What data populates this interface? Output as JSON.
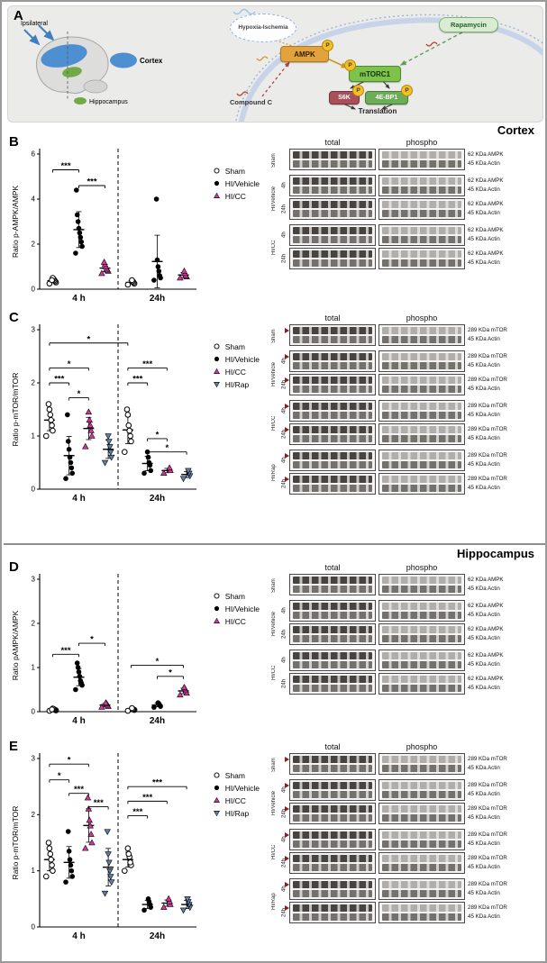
{
  "figure": {
    "cortex_header": "Cortex",
    "hippocampus_header": "Hippocampus"
  },
  "panelA": {
    "label": "A",
    "ipsilateral": "Ipsilateral",
    "cortex": "Cortex",
    "hippocampus": "Hippocampus",
    "hypoxia": "Hypoxia-Ischemia",
    "ampk": "AMPK",
    "mtorc1": "mTORC1",
    "rapamycin": "Rapamycin",
    "compound_c": "Compound C",
    "s6k": "S6K",
    "four_ebp1": "4E-BP1",
    "translation": "Translation",
    "phospho": "P",
    "colors": {
      "ampk_box": "#e2a23c",
      "mtorc1_box": "#7dc24b",
      "rapamycin_box": "#d7ecd2",
      "s6k_box": "#a8505a",
      "ebp1_box": "#6cae57",
      "p_badge": "#f2c029",
      "membrane": "#c7d3e8",
      "hi_cc": "#d5379e",
      "hi_rap": "#5d7fae"
    }
  },
  "panelB": {
    "label": "B",
    "blot": {
      "headers": [
        "total",
        "phospho"
      ],
      "band_labels": [
        "62 KDa AMPK",
        "45 KDa Actin"
      ],
      "arrows": false,
      "groups": [
        {
          "name": "Sham",
          "rows": [
            ""
          ]
        },
        {
          "name": "HI/Vehicle",
          "rows": [
            "4h",
            "24h"
          ]
        },
        {
          "name": "HI/CC",
          "rows": [
            "4h",
            "24h"
          ]
        }
      ]
    }
  },
  "panelC": {
    "label": "C",
    "blot": {
      "headers": [
        "total",
        "phospho"
      ],
      "band_labels": [
        "289 KDa mTOR",
        "45 KDa Actin"
      ],
      "arrows": true,
      "groups": [
        {
          "name": "Sham",
          "rows": [
            ""
          ]
        },
        {
          "name": "HI/Vehicle",
          "rows": [
            "4h",
            "24h"
          ]
        },
        {
          "name": "HI/CC",
          "rows": [
            "4h",
            "24h"
          ]
        },
        {
          "name": "HI/Rap",
          "rows": [
            "4h",
            "24h"
          ]
        }
      ]
    }
  },
  "panelD": {
    "label": "D",
    "blot": {
      "headers": [
        "total",
        "phospho"
      ],
      "band_labels": [
        "62 KDa AMPK",
        "45 KDa Actin"
      ],
      "arrows": false,
      "groups": [
        {
          "name": "Sham",
          "rows": [
            ""
          ]
        },
        {
          "name": "HI/Vehicle",
          "rows": [
            "4h",
            "24h"
          ]
        },
        {
          "name": "HI/CC",
          "rows": [
            "4h",
            "24h"
          ]
        }
      ]
    }
  },
  "panelE": {
    "label": "E",
    "blot": {
      "headers": [
        "total",
        "phospho"
      ],
      "band_labels": [
        "289 KDa mTOR",
        "45 KDa Actin"
      ],
      "arrows": true,
      "groups": [
        {
          "name": "Sham",
          "rows": [
            ""
          ]
        },
        {
          "name": "HI/Vehicle",
          "rows": [
            "4h",
            "24h"
          ]
        },
        {
          "name": "HI/CC",
          "rows": [
            "4h",
            "24h"
          ]
        },
        {
          "name": "HI/Rap",
          "rows": [
            "4h",
            "24h"
          ]
        }
      ]
    }
  },
  "chart_data": [
    {
      "id": "B",
      "type": "scatter",
      "region": "Cortex",
      "ylabel": "Ratio p-AMPK/AMPK",
      "ylim": [
        0,
        6
      ],
      "yticks": [
        0,
        2,
        4,
        6
      ],
      "xgroups": [
        "4 h",
        "24h"
      ],
      "series": [
        {
          "name": "Sham",
          "marker": "circle-open",
          "color": "#000000",
          "values": [
            [
              0.25,
              0.3,
              0.35,
              0.4,
              0.45,
              0.5,
              0.4
            ],
            [
              0.2,
              0.25,
              0.3,
              0.35,
              0.4
            ]
          ]
        },
        {
          "name": "HI/Vehicle",
          "marker": "circle",
          "color": "#000000",
          "values": [
            [
              1.6,
              1.9,
              2.1,
              2.3,
              2.5,
              2.7,
              3.0,
              3.3,
              4.4
            ],
            [
              0.4,
              0.5,
              0.6,
              0.8,
              1.0,
              1.3,
              4.0
            ]
          ]
        },
        {
          "name": "HI/CC",
          "marker": "tri-up",
          "color": "#d5379e",
          "values": [
            [
              0.7,
              0.8,
              0.85,
              0.9,
              1.0,
              1.1,
              1.2
            ],
            [
              0.5,
              0.55,
              0.6,
              0.7,
              0.8
            ]
          ]
        }
      ],
      "sig": [
        {
          "ga": 0,
          "sa": 0,
          "gb": 0,
          "sb": 1,
          "y": 5.3,
          "label": "***"
        },
        {
          "ga": 0,
          "sa": 1,
          "gb": 0,
          "sb": 2,
          "y": 4.6,
          "label": "***"
        }
      ]
    },
    {
      "id": "C",
      "type": "scatter",
      "region": "Cortex",
      "ylabel": "Ratio p-mTOR/mTOR",
      "ylim": [
        0,
        3
      ],
      "yticks": [
        0,
        1,
        2,
        3
      ],
      "xgroups": [
        "4 h",
        "24h"
      ],
      "series": [
        {
          "name": "Sham",
          "marker": "circle-open",
          "color": "#000000",
          "values": [
            [
              1.0,
              1.1,
              1.2,
              1.3,
              1.4,
              1.5,
              1.6
            ],
            [
              0.7,
              0.9,
              1.0,
              1.1,
              1.2,
              1.4,
              1.5
            ]
          ]
        },
        {
          "name": "HI/Vehicle",
          "marker": "circle",
          "color": "#000000",
          "values": [
            [
              0.2,
              0.3,
              0.4,
              0.5,
              0.6,
              0.75,
              0.9,
              1.4
            ],
            [
              0.3,
              0.35,
              0.45,
              0.5,
              0.6,
              0.7
            ]
          ]
        },
        {
          "name": "HI/CC",
          "marker": "tri-up",
          "color": "#d5379e",
          "values": [
            [
              0.8,
              1.0,
              1.1,
              1.2,
              1.3,
              1.45
            ],
            [
              0.3,
              0.35,
              0.4
            ]
          ]
        },
        {
          "name": "HI/Rap",
          "marker": "tri-down",
          "color": "#5d7fae",
          "values": [
            [
              0.5,
              0.6,
              0.7,
              0.8,
              0.9,
              1.0
            ],
            [
              0.2,
              0.25,
              0.3,
              0.35
            ]
          ]
        }
      ],
      "sig": [
        {
          "ga": 0,
          "sa": 0,
          "gb": 0,
          "sb": 1,
          "y": 2.0,
          "label": "***"
        },
        {
          "ga": 0,
          "sa": 1,
          "gb": 0,
          "sb": 2,
          "y": 1.72,
          "label": "*"
        },
        {
          "ga": 0,
          "sa": 0,
          "gb": 0,
          "sb": 2,
          "y": 2.28,
          "label": "*"
        },
        {
          "ga": 0,
          "sa": 0,
          "gb": 1,
          "sb": 0,
          "y": 2.75,
          "label": "*"
        },
        {
          "ga": 1,
          "sa": 0,
          "gb": 1,
          "sb": 1,
          "y": 2.0,
          "label": "***"
        },
        {
          "ga": 1,
          "sa": 0,
          "gb": 1,
          "sb": 2,
          "y": 2.28,
          "label": "***"
        },
        {
          "ga": 1,
          "sa": 1,
          "gb": 1,
          "sb": 2,
          "y": 0.95,
          "label": "*"
        },
        {
          "ga": 1,
          "sa": 1,
          "gb": 1,
          "sb": 3,
          "y": 0.7,
          "label": "*"
        }
      ]
    },
    {
      "id": "D",
      "type": "scatter",
      "region": "Hippocampus",
      "ylabel": "Ratio pAMPK/AMPK",
      "ylim": [
        0,
        3
      ],
      "yticks": [
        0,
        1,
        2,
        3
      ],
      "xgroups": [
        "4 h",
        "24h"
      ],
      "series": [
        {
          "name": "Sham",
          "marker": "circle-open",
          "color": "#000000",
          "values": [
            [
              0.02,
              0.03,
              0.04,
              0.05,
              0.06,
              0.07,
              0.05
            ],
            [
              0.02,
              0.04,
              0.05,
              0.06,
              0.08
            ]
          ]
        },
        {
          "name": "HI/Vehicle",
          "marker": "circle",
          "color": "#000000",
          "values": [
            [
              0.5,
              0.6,
              0.65,
              0.7,
              0.8,
              0.9,
              1.0,
              1.1
            ],
            [
              0.1,
              0.12,
              0.15,
              0.18,
              0.2
            ]
          ]
        },
        {
          "name": "HI/CC",
          "marker": "tri-up",
          "color": "#d5379e",
          "values": [
            [
              0.1,
              0.12,
              0.15,
              0.18,
              0.2
            ],
            [
              0.38,
              0.42,
              0.48,
              0.52,
              0.55
            ]
          ]
        }
      ],
      "sig": [
        {
          "ga": 0,
          "sa": 0,
          "gb": 0,
          "sb": 1,
          "y": 1.3,
          "label": "***"
        },
        {
          "ga": 0,
          "sa": 1,
          "gb": 0,
          "sb": 2,
          "y": 1.55,
          "label": "*"
        },
        {
          "ga": 1,
          "sa": 0,
          "gb": 1,
          "sb": 2,
          "y": 1.05,
          "label": "*"
        },
        {
          "ga": 1,
          "sa": 1,
          "gb": 1,
          "sb": 2,
          "y": 0.8,
          "label": "*"
        }
      ]
    },
    {
      "id": "E",
      "type": "scatter",
      "region": "Hippocampus",
      "ylabel": "Ratio p-mTOR/mTOR",
      "ylim": [
        0,
        3
      ],
      "yticks": [
        0,
        1,
        2,
        3
      ],
      "xgroups": [
        "4 h",
        "24h"
      ],
      "series": [
        {
          "name": "Sham",
          "marker": "circle-open",
          "color": "#000000",
          "values": [
            [
              0.9,
              1.0,
              1.1,
              1.2,
              1.3,
              1.4,
              1.5
            ],
            [
              1.0,
              1.1,
              1.15,
              1.25,
              1.3,
              1.4
            ]
          ]
        },
        {
          "name": "HI/Vehicle",
          "marker": "circle",
          "color": "#000000",
          "values": [
            [
              0.8,
              0.9,
              1.0,
              1.1,
              1.2,
              1.35,
              1.7
            ],
            [
              0.3,
              0.35,
              0.4,
              0.45,
              0.5
            ]
          ]
        },
        {
          "name": "HI/CC",
          "marker": "tri-up",
          "color": "#d5379e",
          "values": [
            [
              1.4,
              1.5,
              1.65,
              1.8,
              1.9,
              2.1,
              2.3
            ],
            [
              0.35,
              0.4,
              0.45,
              0.5
            ]
          ]
        },
        {
          "name": "HI/Rap",
          "marker": "tri-down",
          "color": "#5d7fae",
          "values": [
            [
              0.6,
              0.8,
              0.9,
              1.0,
              1.15,
              1.3,
              1.7
            ],
            [
              0.3,
              0.35,
              0.4,
              0.45,
              0.5
            ]
          ]
        }
      ],
      "sig": [
        {
          "ga": 0,
          "sa": 0,
          "gb": 0,
          "sb": 2,
          "y": 2.9,
          "label": "*"
        },
        {
          "ga": 0,
          "sa": 0,
          "gb": 0,
          "sb": 1,
          "y": 2.62,
          "label": "*"
        },
        {
          "ga": 0,
          "sa": 1,
          "gb": 0,
          "sb": 2,
          "y": 2.38,
          "label": "***"
        },
        {
          "ga": 0,
          "sa": 2,
          "gb": 0,
          "sb": 3,
          "y": 2.14,
          "label": "***"
        },
        {
          "ga": 1,
          "sa": 0,
          "gb": 1,
          "sb": 3,
          "y": 2.5,
          "label": "***"
        },
        {
          "ga": 1,
          "sa": 0,
          "gb": 1,
          "sb": 2,
          "y": 2.24,
          "label": "***"
        },
        {
          "ga": 1,
          "sa": 0,
          "gb": 1,
          "sb": 1,
          "y": 1.98,
          "label": "***"
        }
      ]
    }
  ]
}
